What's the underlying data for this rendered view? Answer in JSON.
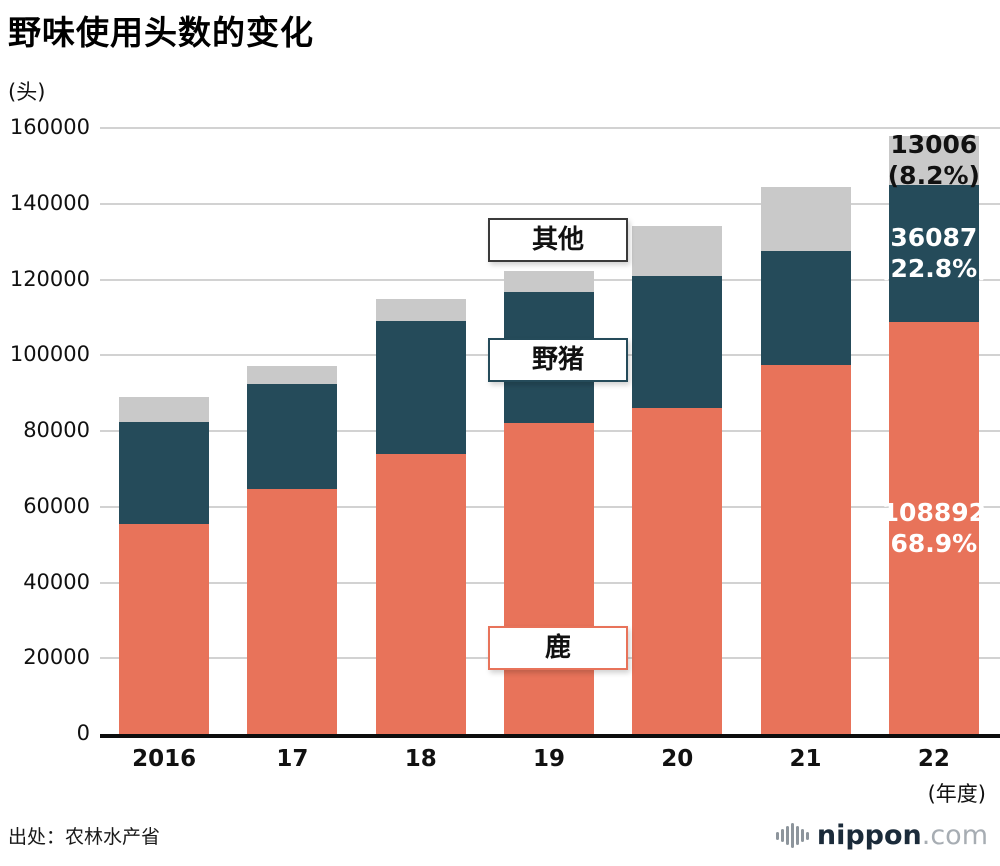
{
  "title": "野味使用头数的变化",
  "y_axis_unit": "(头)",
  "x_axis_unit": "(年度)",
  "source": "出处：农林水产省",
  "logo": {
    "text": "nippon",
    "suffix": ".com"
  },
  "colors": {
    "deer": "#e8735a",
    "boar": "#254b5a",
    "other": "#c9c9c9",
    "axis": "#0d0d0d",
    "grid": "#d2d2d2"
  },
  "chart_data": {
    "type": "bar",
    "stacked": true,
    "title": "野味使用头数的变化",
    "categories": [
      "2016",
      "17",
      "18",
      "19",
      "20",
      "21",
      "22"
    ],
    "series": [
      {
        "key": "deer",
        "name": "鹿",
        "color": "#e8735a",
        "label_color": "#ffffff",
        "values": [
          55500,
          64600,
          74000,
          82000,
          86000,
          97500,
          108892
        ],
        "final_annotation": [
          "108892",
          "(68.9%)"
        ]
      },
      {
        "key": "boar",
        "name": "野猪",
        "color": "#254b5a",
        "label_color": "#ffffff",
        "values": [
          27000,
          27900,
          35000,
          34600,
          34800,
          30000,
          36087
        ],
        "final_annotation": [
          "36087",
          "(22.8%)"
        ]
      },
      {
        "key": "other",
        "name": "其他",
        "color": "#c9c9c9",
        "label_color": "#111111",
        "values": [
          6500,
          4600,
          5900,
          5700,
          13200,
          17000,
          13006
        ],
        "final_annotation": [
          "13006",
          "(8.2%)"
        ]
      }
    ],
    "ylim": [
      0,
      160000
    ],
    "ytick_step": 20000,
    "yticks": [
      "0",
      "20000",
      "40000",
      "60000",
      "80000",
      "100000",
      "120000",
      "140000",
      "160000"
    ],
    "grid": true,
    "legend_position": "overlay"
  }
}
